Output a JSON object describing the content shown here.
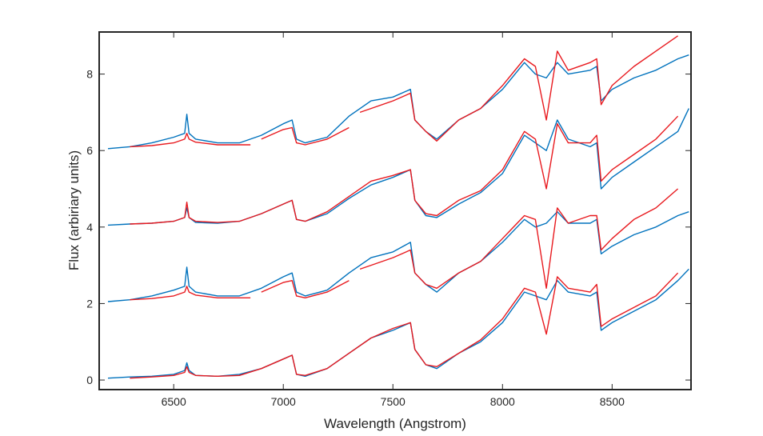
{
  "chart_data": {
    "type": "line",
    "title": "",
    "xlabel": "Wavelength (Angstrom)",
    "ylabel": "Flux  (arbiriary units)",
    "xlim": [
      6160,
      8860
    ],
    "ylim": [
      -0.25,
      9.1
    ],
    "xticks": [
      6500,
      7000,
      7500,
      8000,
      8500
    ],
    "yticks": [
      0,
      2,
      4,
      6,
      8
    ],
    "grid": false,
    "legend": "none",
    "colors": {
      "blue": "#0072BD",
      "red": "#E8191E",
      "axis": "#262626"
    },
    "series": [
      {
        "name": "blue-offset-0",
        "color": "#0072BD",
        "x": [
          6200,
          6300,
          6400,
          6500,
          6550,
          6560,
          6570,
          6600,
          6700,
          6800,
          6900,
          7000,
          7040,
          7060,
          7100,
          7200,
          7300,
          7400,
          7500,
          7580,
          7600,
          7650,
          7700,
          7800,
          7900,
          8000,
          8100,
          8150,
          8200,
          8250,
          8300,
          8400,
          8430,
          8450,
          8500,
          8600,
          8700,
          8800,
          8850
        ],
        "y": [
          0.05,
          0.08,
          0.1,
          0.15,
          0.25,
          0.45,
          0.25,
          0.12,
          0.1,
          0.15,
          0.3,
          0.55,
          0.65,
          0.15,
          0.1,
          0.3,
          0.7,
          1.1,
          1.3,
          1.5,
          0.8,
          0.4,
          0.3,
          0.7,
          1.0,
          1.5,
          2.3,
          2.2,
          2.1,
          2.6,
          2.3,
          2.2,
          2.3,
          1.3,
          1.5,
          1.8,
          2.1,
          2.6,
          2.9
        ]
      },
      {
        "name": "red-offset-0",
        "color": "#E8191E",
        "x": [
          6300,
          6400,
          6500,
          6550,
          6560,
          6570,
          6600,
          6700,
          6800,
          6900,
          7000,
          7040,
          7060,
          7100,
          7200,
          7300,
          7400,
          7500,
          7580,
          7600,
          7650,
          7700,
          7800,
          7900,
          8000,
          8100,
          8150,
          8200,
          8250,
          8300,
          8400,
          8430,
          8450,
          8500,
          8600,
          8700,
          8800
        ],
        "y": [
          0.05,
          0.08,
          0.12,
          0.2,
          0.35,
          0.2,
          0.12,
          0.1,
          0.12,
          0.3,
          0.55,
          0.65,
          0.15,
          0.12,
          0.3,
          0.7,
          1.1,
          1.35,
          1.5,
          0.8,
          0.4,
          0.35,
          0.7,
          1.05,
          1.6,
          2.4,
          2.3,
          1.2,
          2.7,
          2.4,
          2.3,
          2.5,
          1.4,
          1.6,
          1.9,
          2.2,
          2.8
        ]
      },
      {
        "name": "blue-offset-2",
        "color": "#0072BD",
        "x": [
          6200,
          6300,
          6400,
          6500,
          6550,
          6560,
          6570,
          6600,
          6700,
          6800,
          6900,
          7000,
          7040,
          7060,
          7100,
          7200,
          7300,
          7400,
          7500,
          7580,
          7600,
          7650,
          7700,
          7800,
          7900,
          8000,
          8100,
          8150,
          8200,
          8250,
          8300,
          8400,
          8430,
          8450,
          8500,
          8600,
          8700,
          8800,
          8850
        ],
        "y": [
          2.05,
          2.1,
          2.2,
          2.35,
          2.45,
          2.95,
          2.45,
          2.3,
          2.2,
          2.2,
          2.4,
          2.7,
          2.8,
          2.3,
          2.2,
          2.35,
          2.8,
          3.2,
          3.35,
          3.6,
          2.8,
          2.5,
          2.3,
          2.8,
          3.1,
          3.6,
          4.2,
          4.0,
          4.1,
          4.4,
          4.1,
          4.1,
          4.2,
          3.3,
          3.5,
          3.8,
          4.0,
          4.3,
          4.4
        ]
      },
      {
        "name": "red-offset-2",
        "color": "#E8191E",
        "x": [
          6300,
          6400,
          6500,
          6550,
          6560,
          6570,
          6600,
          6700,
          6800,
          6850
        ],
        "y": [
          2.1,
          2.13,
          2.2,
          2.3,
          2.45,
          2.3,
          2.22,
          2.15,
          2.15,
          2.15
        ]
      },
      {
        "name": "red-offset-2b",
        "color": "#E8191E",
        "x": [
          6900,
          7000,
          7040,
          7060,
          7100,
          7200,
          7300
        ],
        "y": [
          2.3,
          2.55,
          2.6,
          2.2,
          2.15,
          2.3,
          2.6
        ]
      },
      {
        "name": "red-offset-2c",
        "color": "#E8191E",
        "x": [
          7350,
          7400,
          7500,
          7580,
          7600,
          7650,
          7700,
          7800,
          7900,
          8000,
          8100,
          8150,
          8200,
          8250,
          8300,
          8400,
          8430,
          8450,
          8500,
          8600,
          8700,
          8800
        ],
        "y": [
          2.9,
          3.0,
          3.2,
          3.4,
          2.8,
          2.5,
          2.4,
          2.8,
          3.1,
          3.7,
          4.3,
          4.2,
          2.4,
          4.5,
          4.1,
          4.3,
          4.3,
          3.4,
          3.7,
          4.2,
          4.5,
          5.0
        ]
      },
      {
        "name": "blue-offset-4",
        "color": "#0072BD",
        "x": [
          6200,
          6300,
          6400,
          6500,
          6550,
          6560,
          6570,
          6600,
          6700,
          6800,
          6900,
          7000,
          7040,
          7060,
          7100,
          7200,
          7300,
          7400,
          7500,
          7580,
          7600,
          7650,
          7700,
          7800,
          7900,
          8000,
          8100,
          8150,
          8200,
          8250,
          8300,
          8400,
          8430,
          8450,
          8500,
          8600,
          8700,
          8800,
          8850
        ],
        "y": [
          4.05,
          4.08,
          4.1,
          4.15,
          4.25,
          4.5,
          4.25,
          4.12,
          4.1,
          4.15,
          4.35,
          4.6,
          4.7,
          4.2,
          4.15,
          4.35,
          4.75,
          5.1,
          5.3,
          5.5,
          4.7,
          4.3,
          4.25,
          4.6,
          4.9,
          5.4,
          6.4,
          6.2,
          6.0,
          6.8,
          6.3,
          6.1,
          6.2,
          5.0,
          5.3,
          5.7,
          6.1,
          6.5,
          7.1
        ]
      },
      {
        "name": "red-offset-4",
        "color": "#E8191E",
        "x": [
          6300,
          6400,
          6500,
          6550,
          6560,
          6570,
          6600,
          6700,
          6800,
          6900,
          7000,
          7040,
          7060,
          7100,
          7200,
          7300,
          7400,
          7500,
          7580,
          7600,
          7650,
          7700,
          7800,
          7900,
          8000,
          8100,
          8150,
          8200,
          8250,
          8300,
          8400,
          8430,
          8450,
          8500,
          8600,
          8700,
          8800
        ],
        "y": [
          4.08,
          4.1,
          4.15,
          4.25,
          4.65,
          4.25,
          4.15,
          4.12,
          4.15,
          4.35,
          4.6,
          4.7,
          4.2,
          4.15,
          4.4,
          4.8,
          5.2,
          5.35,
          5.5,
          4.7,
          4.35,
          4.3,
          4.7,
          4.95,
          5.5,
          6.5,
          6.3,
          5.0,
          6.7,
          6.2,
          6.2,
          6.4,
          5.2,
          5.5,
          5.9,
          6.3,
          6.9
        ]
      },
      {
        "name": "blue-offset-6",
        "color": "#0072BD",
        "x": [
          6200,
          6300,
          6400,
          6500,
          6550,
          6560,
          6570,
          6600,
          6700,
          6800,
          6900,
          7000,
          7040,
          7060,
          7100,
          7200,
          7300,
          7400,
          7500,
          7580,
          7600,
          7650,
          7700,
          7800,
          7900,
          8000,
          8100,
          8150,
          8200,
          8250,
          8300,
          8400,
          8430,
          8450,
          8500,
          8600,
          8700,
          8800,
          8850
        ],
        "y": [
          6.05,
          6.1,
          6.2,
          6.35,
          6.45,
          6.95,
          6.45,
          6.3,
          6.2,
          6.2,
          6.4,
          6.7,
          6.8,
          6.3,
          6.2,
          6.35,
          6.9,
          7.3,
          7.4,
          7.6,
          6.8,
          6.5,
          6.3,
          6.8,
          7.1,
          7.6,
          8.3,
          8.0,
          7.9,
          8.3,
          8.0,
          8.1,
          8.2,
          7.3,
          7.6,
          7.9,
          8.1,
          8.4,
          8.5
        ]
      },
      {
        "name": "red-offset-6",
        "color": "#E8191E",
        "x": [
          6300,
          6400,
          6500,
          6550,
          6560,
          6570,
          6600,
          6700,
          6800,
          6850
        ],
        "y": [
          6.1,
          6.13,
          6.2,
          6.3,
          6.45,
          6.3,
          6.22,
          6.15,
          6.15,
          6.15
        ]
      },
      {
        "name": "red-offset-6b",
        "color": "#E8191E",
        "x": [
          6900,
          7000,
          7040,
          7060,
          7100,
          7200,
          7300
        ],
        "y": [
          6.3,
          6.55,
          6.6,
          6.2,
          6.15,
          6.3,
          6.6
        ]
      },
      {
        "name": "red-offset-6c",
        "color": "#E8191E",
        "x": [
          7350,
          7400,
          7500,
          7580,
          7600,
          7650,
          7700,
          7800,
          7900,
          8000,
          8100,
          8150,
          8200,
          8250,
          8300,
          8400,
          8430,
          8450,
          8500,
          8600,
          8700,
          8800
        ],
        "y": [
          7.0,
          7.1,
          7.3,
          7.5,
          6.8,
          6.5,
          6.25,
          6.8,
          7.1,
          7.7,
          8.4,
          8.2,
          6.8,
          8.6,
          8.1,
          8.3,
          8.4,
          7.2,
          7.7,
          8.2,
          8.6,
          9.0
        ]
      }
    ]
  }
}
